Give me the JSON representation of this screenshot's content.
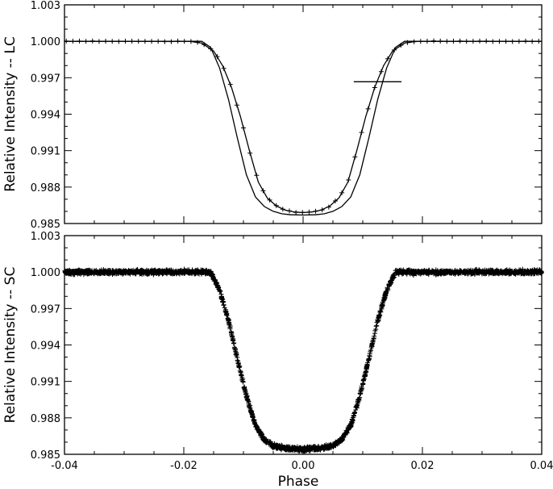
{
  "chart_data": [
    {
      "type": "line",
      "panel": "top",
      "ylabel": "Relative Intensity -- LC",
      "xlabel": "",
      "xlim": [
        -0.04,
        0.04
      ],
      "ylim": [
        0.985,
        1.003
      ],
      "yticks": [
        0.985,
        0.988,
        0.991,
        0.994,
        0.997,
        1.0,
        1.003
      ],
      "ytick_labels": [
        "0.985",
        "0.988",
        "0.991",
        "0.994",
        "0.997",
        "1.000",
        "1.003"
      ],
      "xticks": [
        -0.04,
        -0.02,
        0.0,
        0.02,
        0.04
      ],
      "series": [
        {
          "kind": "model-line",
          "x": [
            -0.04,
            -0.017,
            -0.0155,
            -0.014,
            -0.0125,
            -0.011,
            -0.0095,
            -0.008,
            -0.0065,
            -0.005,
            -0.0035,
            -0.002,
            0.0,
            0.002,
            0.0035,
            0.005,
            0.0065,
            0.008,
            0.0095,
            0.011,
            0.0125,
            0.014,
            0.0155,
            0.017,
            0.04
          ],
          "y": [
            1.0,
            1.0,
            0.9995,
            0.9978,
            0.9952,
            0.992,
            0.989,
            0.9872,
            0.9864,
            0.986,
            0.9858,
            0.98572,
            0.9857,
            0.98572,
            0.9858,
            0.986,
            0.9864,
            0.9872,
            0.989,
            0.992,
            0.9952,
            0.9978,
            0.9995,
            1.0,
            1.0
          ]
        },
        {
          "kind": "smeared-line",
          "x": [
            -0.04,
            -0.019,
            -0.017,
            -0.015,
            -0.0135,
            -0.012,
            -0.0105,
            -0.009,
            -0.0075,
            -0.006,
            -0.0045,
            -0.003,
            -0.0015,
            0.0,
            0.0015,
            0.003,
            0.0045,
            0.006,
            0.0075,
            0.009,
            0.0105,
            0.012,
            0.0135,
            0.015,
            0.017,
            0.019,
            0.04
          ],
          "y": [
            1.0,
            1.0,
            0.99985,
            0.9992,
            0.998,
            0.9962,
            0.9938,
            0.991,
            0.9884,
            0.9871,
            0.98645,
            0.9861,
            0.98595,
            0.9859,
            0.98595,
            0.9861,
            0.98645,
            0.9871,
            0.9884,
            0.991,
            0.9938,
            0.9962,
            0.998,
            0.9992,
            0.99985,
            1.0,
            1.0
          ]
        },
        {
          "kind": "data-points",
          "cadence": "LC",
          "sampling": "points follow the smeared curve at ~0.0011 phase spacing with small scatter"
        }
      ],
      "annotations": [
        {
          "kind": "error-bar",
          "x": [
            0.0085,
            0.0165
          ],
          "y": 0.99667
        }
      ]
    },
    {
      "type": "scatter",
      "panel": "bottom",
      "ylabel": "Relative Intensity -- SC",
      "xlabel": "Phase",
      "xlim": [
        -0.04,
        0.04
      ],
      "ylim": [
        0.985,
        1.003
      ],
      "yticks": [
        0.985,
        0.988,
        0.991,
        0.994,
        0.997,
        1.0,
        1.003
      ],
      "ytick_labels": [
        "0.985",
        "0.988",
        "0.991",
        "0.994",
        "0.997",
        "1.000",
        "1.003"
      ],
      "xticks": [
        -0.04,
        -0.02,
        0.0,
        0.02,
        0.04
      ],
      "xtick_labels": [
        "-0.04",
        "-0.02",
        "0.00",
        "0.02",
        "0.04"
      ],
      "series": [
        {
          "kind": "data-points",
          "cadence": "SC",
          "x_points": [
            -0.04,
            -0.0155,
            -0.014,
            -0.0125,
            -0.011,
            -0.0095,
            -0.008,
            -0.0065,
            -0.005,
            -0.003,
            0.0,
            0.003,
            0.005,
            0.0065,
            0.008,
            0.0095,
            0.011,
            0.0125,
            0.014,
            0.0155,
            0.04
          ],
          "y_points": [
            1.0,
            1.0,
            0.9985,
            0.996,
            0.9928,
            0.9898,
            0.9874,
            0.9862,
            0.9857,
            0.9855,
            0.9854,
            0.9855,
            0.9857,
            0.9862,
            0.9874,
            0.9898,
            0.9928,
            0.996,
            0.9985,
            1.0,
            1.0
          ],
          "scatter": 0.0003,
          "sampling": "dense short-cadence points along this profile"
        }
      ]
    }
  ]
}
